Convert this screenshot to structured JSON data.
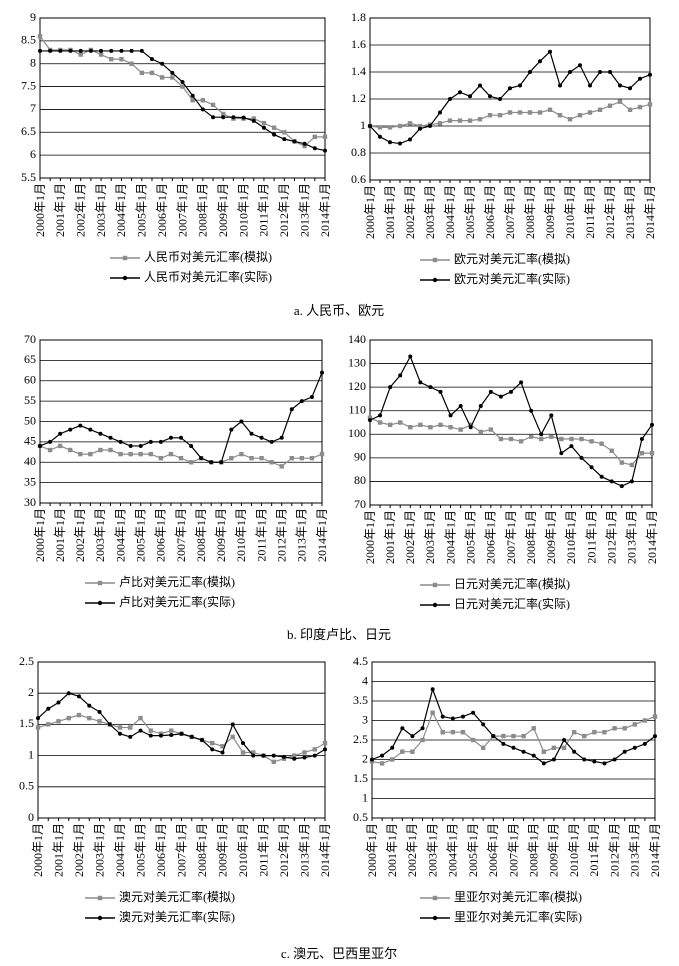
{
  "chart_data": [
    {
      "type": "line",
      "categories": [
        "2000年1月",
        null,
        "2001年1月",
        null,
        "2002年1月",
        null,
        "2003年1月",
        null,
        "2004年1月",
        null,
        "2005年1月",
        null,
        "2006年1月",
        null,
        "2007年1月",
        null,
        "2008年1月",
        null,
        "2009年1月",
        null,
        "2010年1月",
        null,
        "2011年1月",
        null,
        "2012年1月",
        null,
        "2013年1月",
        null,
        "2014年1月"
      ],
      "series": [
        {
          "name": "人民币对美元汇率(模拟)",
          "color": "#8c8c8c",
          "marker": "square",
          "values": [
            8.6,
            8.3,
            8.3,
            8.3,
            8.2,
            8.3,
            8.2,
            8.1,
            8.1,
            8.0,
            7.8,
            7.8,
            7.7,
            7.7,
            7.5,
            7.2,
            7.2,
            7.1,
            6.9,
            6.8,
            6.8,
            6.8,
            6.7,
            6.6,
            6.5,
            6.3,
            6.2,
            6.4,
            6.4
          ]
        },
        {
          "name": "人民币对美元汇率(实际)",
          "color": "#000000",
          "marker": "circle",
          "values": [
            8.28,
            8.28,
            8.28,
            8.28,
            8.28,
            8.28,
            8.28,
            8.28,
            8.28,
            8.28,
            8.28,
            8.1,
            8.0,
            7.8,
            7.6,
            7.3,
            7.0,
            6.83,
            6.83,
            6.83,
            6.82,
            6.75,
            6.6,
            6.45,
            6.35,
            6.3,
            6.25,
            6.15,
            6.1
          ]
        }
      ],
      "ylim": [
        5.5,
        9
      ],
      "yticks": [
        5.5,
        6,
        6.5,
        7,
        7.5,
        8,
        8.5,
        9
      ],
      "grid": true
    },
    {
      "type": "line",
      "categories": [
        "2000年1月",
        null,
        "2001年1月",
        null,
        "2002年1月",
        null,
        "2003年1月",
        null,
        "2004年1月",
        null,
        "2005年1月",
        null,
        "2006年1月",
        null,
        "2007年1月",
        null,
        "2008年1月",
        null,
        "2009年1月",
        null,
        "2010年1月",
        null,
        "2011年1月",
        null,
        "2012年1月",
        null,
        "2013年1月",
        null,
        "2014年1月"
      ],
      "series": [
        {
          "name": "欧元对美元汇率(模拟)",
          "color": "#8c8c8c",
          "marker": "square",
          "values": [
            1.0,
            0.99,
            0.99,
            1.0,
            1.02,
            1.0,
            1.01,
            1.02,
            1.04,
            1.04,
            1.04,
            1.05,
            1.08,
            1.08,
            1.1,
            1.1,
            1.1,
            1.1,
            1.12,
            1.08,
            1.05,
            1.08,
            1.1,
            1.12,
            1.15,
            1.18,
            1.12,
            1.14,
            1.16
          ]
        },
        {
          "name": "欧元对美元汇率(实际)",
          "color": "#000000",
          "marker": "circle",
          "values": [
            1.0,
            0.92,
            0.88,
            0.87,
            0.9,
            0.98,
            1.0,
            1.1,
            1.2,
            1.25,
            1.22,
            1.3,
            1.22,
            1.2,
            1.28,
            1.3,
            1.4,
            1.48,
            1.55,
            1.3,
            1.4,
            1.45,
            1.3,
            1.4,
            1.4,
            1.3,
            1.28,
            1.35,
            1.38
          ]
        }
      ],
      "ylim": [
        0.6,
        1.8
      ],
      "yticks": [
        0.6,
        0.8,
        1,
        1.2,
        1.4,
        1.6,
        1.8
      ],
      "grid": true
    },
    {
      "type": "line",
      "categories": [
        "2000年1月",
        null,
        "2001年1月",
        null,
        "2002年1月",
        null,
        "2003年1月",
        null,
        "2004年1月",
        null,
        "2005年1月",
        null,
        "2006年1月",
        null,
        "2007年1月",
        null,
        "2008年1月",
        null,
        "2009年1月",
        null,
        "2010年1月",
        null,
        "2011年1月",
        null,
        "2012年1月",
        null,
        "2013年1月",
        null,
        "2014年1月"
      ],
      "series": [
        {
          "name": "卢比对美元汇率(模拟)",
          "color": "#8c8c8c",
          "marker": "square",
          "values": [
            44,
            43,
            44,
            43,
            42,
            42,
            43,
            43,
            42,
            42,
            42,
            42,
            41,
            42,
            41,
            40,
            41,
            40,
            40,
            41,
            42,
            41,
            41,
            40,
            39,
            41,
            41,
            41,
            42
          ]
        },
        {
          "name": "卢比对美元汇率(实际)",
          "color": "#000000",
          "marker": "circle",
          "values": [
            44,
            45,
            47,
            48,
            49,
            48,
            47,
            46,
            45,
            44,
            44,
            45,
            45,
            46,
            46,
            44,
            41,
            40,
            40,
            48,
            50,
            47,
            46,
            45,
            46,
            53,
            55,
            56,
            62
          ]
        }
      ],
      "ylim": [
        30,
        70
      ],
      "yticks": [
        30,
        35,
        40,
        45,
        50,
        55,
        60,
        65,
        70
      ],
      "grid": true
    },
    {
      "type": "line",
      "categories": [
        "2000年1月",
        null,
        "2001年1月",
        null,
        "2002年1月",
        null,
        "2003年1月",
        null,
        "2004年1月",
        null,
        "2005年1月",
        null,
        "2006年1月",
        null,
        "2007年1月",
        null,
        "2008年1月",
        null,
        "2009年1月",
        null,
        "2010年1月",
        null,
        "2011年1月",
        null,
        "2012年1月",
        null,
        "2013年1月",
        null,
        "2014年1月"
      ],
      "series": [
        {
          "name": "日元对美元汇率(模拟)",
          "color": "#8c8c8c",
          "marker": "square",
          "values": [
            107,
            105,
            104,
            105,
            103,
            104,
            103,
            104,
            103,
            102,
            104,
            101,
            102,
            98,
            98,
            97,
            99,
            98,
            99,
            98,
            98,
            98,
            97,
            96,
            93,
            88,
            87,
            92,
            92
          ]
        },
        {
          "name": "日元对美元汇率(实际)",
          "color": "#000000",
          "marker": "circle",
          "values": [
            106,
            108,
            120,
            125,
            133,
            122,
            120,
            118,
            108,
            112,
            103,
            112,
            118,
            116,
            118,
            122,
            110,
            100,
            108,
            92,
            95,
            90,
            86,
            82,
            80,
            78,
            80,
            98,
            104
          ]
        }
      ],
      "ylim": [
        70,
        140
      ],
      "yticks": [
        70,
        80,
        90,
        100,
        110,
        120,
        130,
        140
      ],
      "grid": true
    },
    {
      "type": "line",
      "categories": [
        "2000年1月",
        null,
        "2001年1月",
        null,
        "2002年1月",
        null,
        "2003年1月",
        null,
        "2004年1月",
        null,
        "2005年1月",
        null,
        "2006年1月",
        null,
        "2007年1月",
        null,
        "2008年1月",
        null,
        "2009年1月",
        null,
        "2010年1月",
        null,
        "2011年1月",
        null,
        "2012年1月",
        null,
        "2013年1月",
        null,
        "2014年1月"
      ],
      "series": [
        {
          "name": "澳元对美元汇率(模拟)",
          "color": "#8c8c8c",
          "marker": "square",
          "values": [
            1.45,
            1.5,
            1.55,
            1.6,
            1.65,
            1.6,
            1.55,
            1.5,
            1.45,
            1.45,
            1.6,
            1.4,
            1.35,
            1.4,
            1.35,
            1.3,
            1.25,
            1.2,
            1.15,
            1.3,
            1.05,
            1.05,
            1.0,
            0.9,
            0.95,
            1.0,
            1.05,
            1.1,
            1.2
          ]
        },
        {
          "name": "澳元对美元汇率(实际)",
          "color": "#000000",
          "marker": "circle",
          "values": [
            1.6,
            1.75,
            1.85,
            2.0,
            1.95,
            1.8,
            1.7,
            1.5,
            1.35,
            1.3,
            1.4,
            1.32,
            1.32,
            1.33,
            1.35,
            1.3,
            1.25,
            1.1,
            1.05,
            1.5,
            1.2,
            1.0,
            1.0,
            1.0,
            0.98,
            0.95,
            0.97,
            1.0,
            1.1
          ]
        }
      ],
      "ylim": [
        0,
        2.5
      ],
      "yticks": [
        0,
        0.5,
        1,
        1.5,
        2,
        2.5
      ],
      "grid": true
    },
    {
      "type": "line",
      "categories": [
        "2000年1月",
        null,
        "2001年1月",
        null,
        "2002年1月",
        null,
        "2003年1月",
        null,
        "2004年1月",
        null,
        "2005年1月",
        null,
        "2006年1月",
        null,
        "2007年1月",
        null,
        "2008年1月",
        null,
        "2009年1月",
        null,
        "2010年1月",
        null,
        "2011年1月",
        null,
        "2012年1月",
        null,
        "2013年1月",
        null,
        "2014年1月"
      ],
      "series": [
        {
          "name": "里亚尔对美元汇率(模拟)",
          "color": "#8c8c8c",
          "marker": "square",
          "values": [
            1.95,
            1.9,
            2.0,
            2.2,
            2.2,
            2.5,
            3.2,
            2.7,
            2.7,
            2.7,
            2.5,
            2.3,
            2.6,
            2.6,
            2.6,
            2.6,
            2.8,
            2.2,
            2.3,
            2.3,
            2.7,
            2.6,
            2.7,
            2.7,
            2.8,
            2.8,
            2.9,
            3.0,
            3.1
          ]
        },
        {
          "name": "里亚尔对美元汇率(实际)",
          "color": "#000000",
          "marker": "circle",
          "values": [
            2.0,
            2.1,
            2.3,
            2.8,
            2.6,
            2.8,
            3.8,
            3.1,
            3.05,
            3.1,
            3.2,
            2.9,
            2.6,
            2.4,
            2.3,
            2.2,
            2.1,
            1.9,
            2.0,
            2.5,
            2.2,
            2.0,
            1.95,
            1.9,
            2.0,
            2.2,
            2.3,
            2.4,
            2.6
          ]
        }
      ],
      "ylim": [
        0.5,
        4.5
      ],
      "yticks": [
        0.5,
        1,
        1.5,
        2,
        2.5,
        3,
        3.5,
        4,
        4.5
      ],
      "grid": true
    }
  ],
  "captions": [
    "a. 人民币、欧元",
    "b. 印度卢比、日元",
    "c. 澳元、巴西里亚尔"
  ]
}
